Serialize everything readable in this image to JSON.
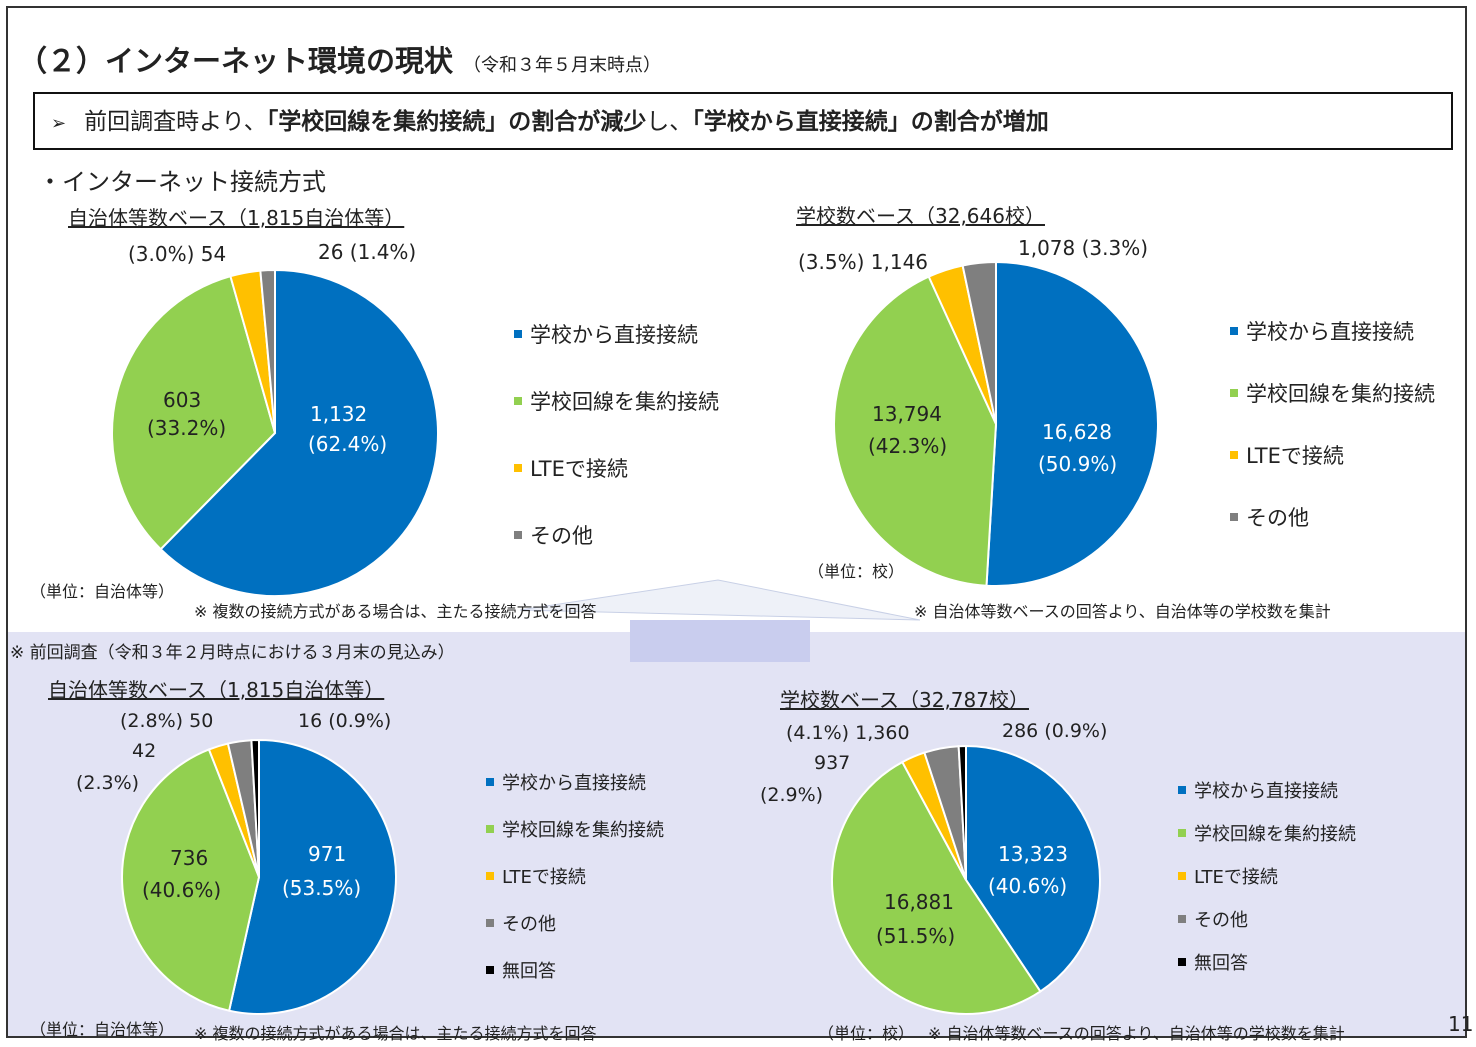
{
  "page": {
    "heading": "（２）インターネット環境の現状",
    "heading_date": "（令和３年５月末時点）",
    "summary": {
      "arrow": "➢",
      "part1": "前回調査時より、",
      "part2": "「学校回線を集約接続」の割合が減少",
      "part3": "し、",
      "part4": "「学校から直接接続」の割合が増加"
    },
    "subhead": "・インターネット接続方式",
    "prev_note": "※ 前回調査（令和３年２月時点における３月末の見込み）",
    "page_number": "11"
  },
  "colors": {
    "direct": "#0070c0",
    "aggregate": "#92d050",
    "lte": "#ffc000",
    "other": "#7f7f7f",
    "noanswer": "#000000",
    "band": "#e2e3f4"
  },
  "panels": {
    "current_muni": {
      "title": "自治体等数ベース（1,815自治体等）",
      "unit": "（単位：自治体等）",
      "note": "※ 複数の接続方式がある場合は、主たる接続方式を回答",
      "legend": [
        "学校から直接接続",
        "学校回線を集約接続",
        "LTEで接続",
        "その他"
      ],
      "labels": {
        "direct_value": "1,132",
        "direct_pct": "(62.4%)",
        "aggregate_value": "603",
        "aggregate_pct": "(33.2%)",
        "lte": "(3.0%) 54",
        "other": "26 (1.4%)"
      }
    },
    "current_school": {
      "title": "学校数ベース（32,646校）",
      "unit": "（単位：校）",
      "note": "※ 自治体等数ベースの回答より、自治体等の学校数を集計",
      "legend": [
        "学校から直接接続",
        "学校回線を集約接続",
        "LTEで接続",
        "その他"
      ],
      "labels": {
        "direct_value": "16,628",
        "direct_pct": "(50.9%)",
        "aggregate_value": "13,794",
        "aggregate_pct": "(42.3%)",
        "lte": "(3.5%) 1,146",
        "other": "1,078 (3.3%)"
      }
    },
    "prev_muni": {
      "title": "自治体等数ベース（1,815自治体等）",
      "unit": "（単位：自治体等）",
      "note": "※ 複数の接続方式がある場合は、主たる接続方式を回答",
      "legend": [
        "学校から直接接続",
        "学校回線を集約接続",
        "LTEで接続",
        "その他",
        "無回答"
      ],
      "labels": {
        "direct_value": "971",
        "direct_pct": "(53.5%)",
        "aggregate_value": "736",
        "aggregate_pct": "(40.6%)",
        "lte_value": "42",
        "lte_pct": "(2.3%)",
        "other": "(2.8%) 50",
        "noanswer": "16 (0.9%)"
      }
    },
    "prev_school": {
      "title": "学校数ベース（32,787校）",
      "unit": "（単位：校）",
      "note": "※ 自治体等数ベースの回答より、自治体等の学校数を集計",
      "legend": [
        "学校から直接接続",
        "学校回線を集約接続",
        "LTEで接続",
        "その他",
        "無回答"
      ],
      "labels": {
        "direct_value": "13,323",
        "direct_pct": "(40.6%)",
        "aggregate_value": "16,881",
        "aggregate_pct": "(51.5%)",
        "lte_value": "937",
        "lte_pct": "(2.9%)",
        "other": "(4.1%) 1,360",
        "noanswer": "286 (0.9%)"
      }
    }
  },
  "chart_data": [
    {
      "type": "pie",
      "title": "自治体等数ベース（1,815自治体等）",
      "categories": [
        "学校から直接接続",
        "学校回線を集約接続",
        "LTEで接続",
        "その他"
      ],
      "values": [
        1132,
        603,
        54,
        26
      ],
      "percentages": [
        62.4,
        33.2,
        3.0,
        1.4
      ],
      "colors": [
        "#0070c0",
        "#92d050",
        "#ffc000",
        "#7f7f7f"
      ],
      "legend": "right"
    },
    {
      "type": "pie",
      "title": "学校数ベース（32,646校）",
      "categories": [
        "学校から直接接続",
        "学校回線を集約接続",
        "LTEで接続",
        "その他"
      ],
      "values": [
        16628,
        13794,
        1146,
        1078
      ],
      "percentages": [
        50.9,
        42.3,
        3.5,
        3.3
      ],
      "colors": [
        "#0070c0",
        "#92d050",
        "#ffc000",
        "#7f7f7f"
      ],
      "legend": "right"
    },
    {
      "type": "pie",
      "title": "自治体等数ベース（1,815自治体等）",
      "categories": [
        "学校から直接接続",
        "学校回線を集約接続",
        "LTEで接続",
        "その他",
        "無回答"
      ],
      "values": [
        971,
        736,
        42,
        50,
        16
      ],
      "percentages": [
        53.5,
        40.6,
        2.3,
        2.8,
        0.9
      ],
      "colors": [
        "#0070c0",
        "#92d050",
        "#ffc000",
        "#7f7f7f",
        "#000000"
      ],
      "legend": "right"
    },
    {
      "type": "pie",
      "title": "学校数ベース（32,787校）",
      "categories": [
        "学校から直接接続",
        "学校回線を集約接続",
        "LTEで接続",
        "その他",
        "無回答"
      ],
      "values": [
        13323,
        16881,
        937,
        1360,
        286
      ],
      "percentages": [
        40.6,
        51.5,
        2.9,
        4.1,
        0.9
      ],
      "colors": [
        "#0070c0",
        "#92d050",
        "#ffc000",
        "#7f7f7f",
        "#000000"
      ],
      "legend": "right"
    }
  ]
}
